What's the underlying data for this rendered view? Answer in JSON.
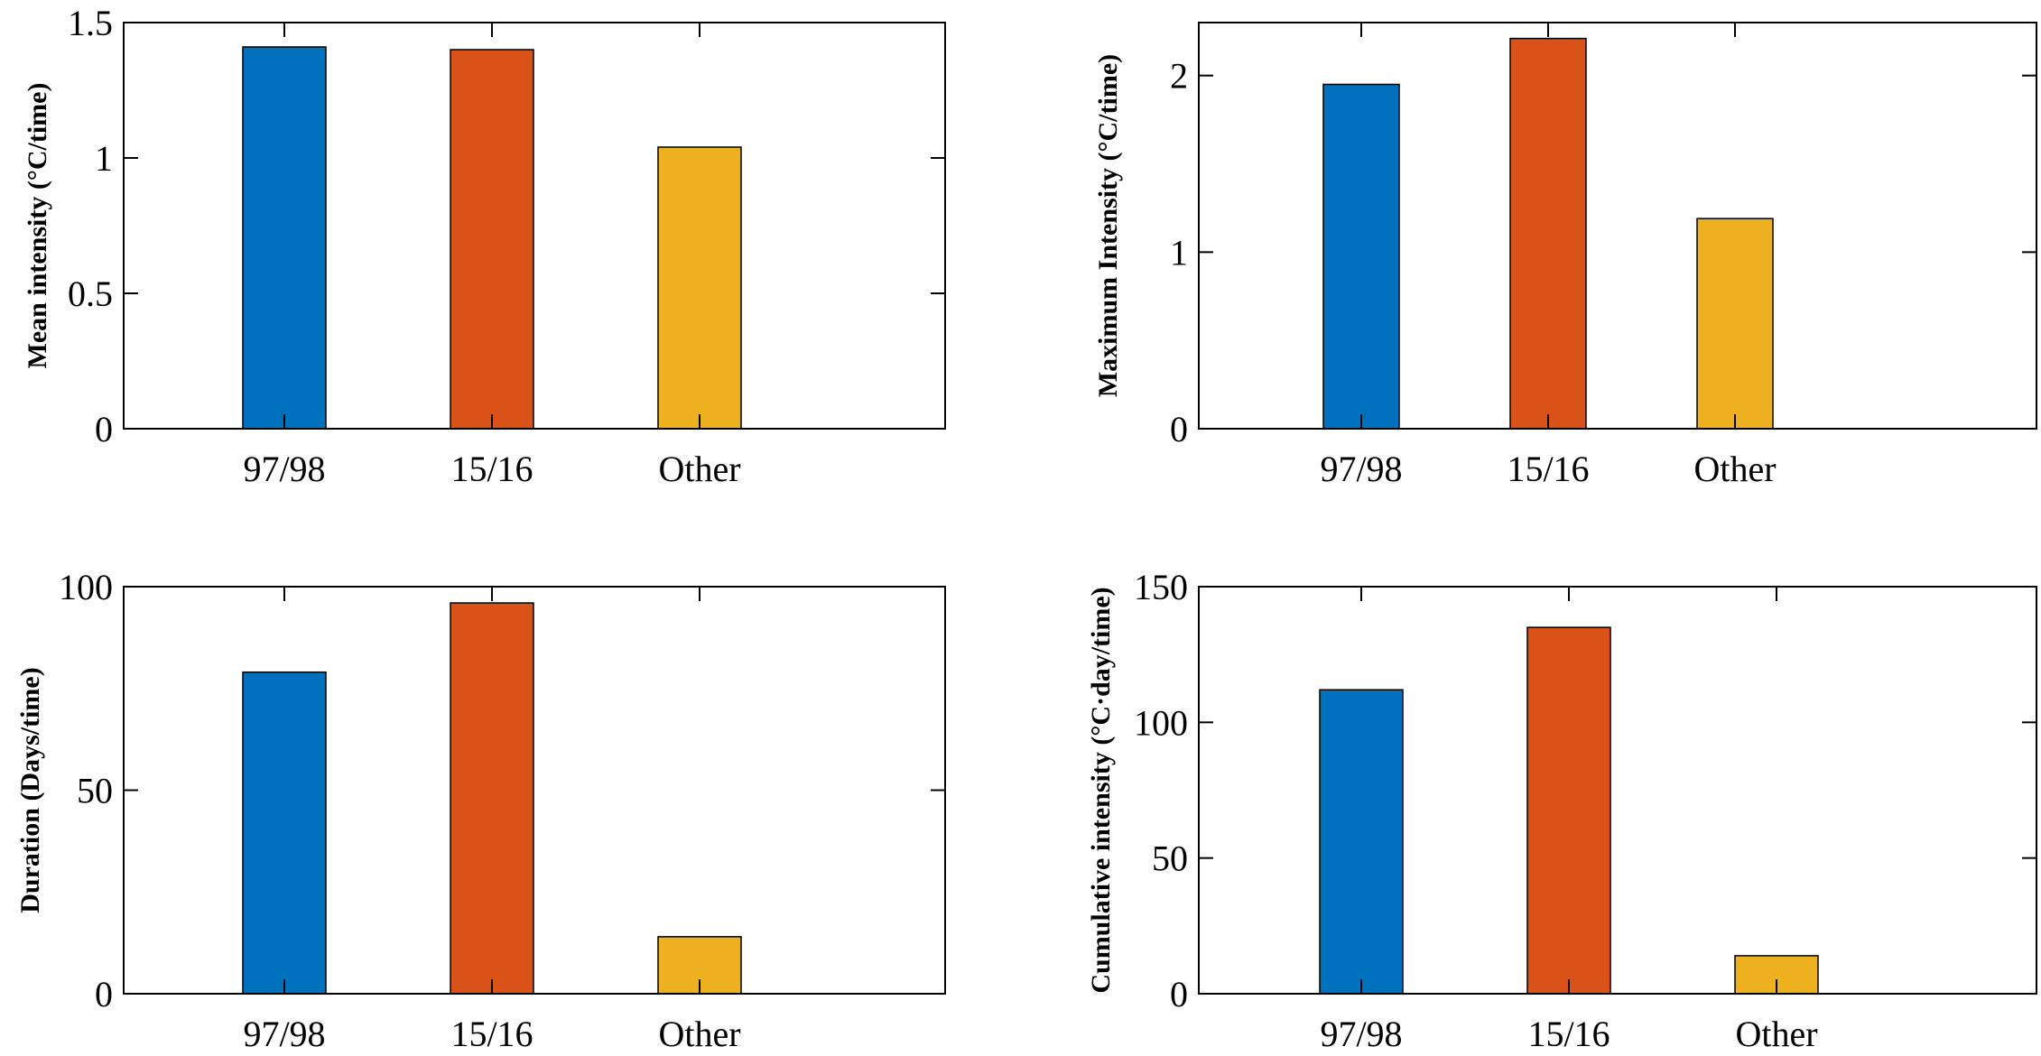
{
  "colors": {
    "97/98": "#0072BD",
    "15/16": "#D95319",
    "Other": "#EDB120"
  },
  "chart_data": [
    {
      "type": "bar",
      "position": "top-left",
      "categories": [
        "97/98",
        "15/16",
        "Other"
      ],
      "values": [
        1.41,
        1.4,
        1.04
      ],
      "ylabel": "Mean intensity  (°C/time)",
      "xlabel": "",
      "ylim": [
        0,
        1.5
      ],
      "yticks": [
        0,
        0.5,
        1,
        1.5
      ],
      "ytick_labels": [
        "0",
        "0.5",
        "1",
        "1.5"
      ],
      "grid": false
    },
    {
      "type": "bar",
      "position": "top-right",
      "categories": [
        "97/98",
        "15/16",
        "Other"
      ],
      "values": [
        1.95,
        2.21,
        1.19
      ],
      "ylabel": "Maximum Intensity  (°C/time)",
      "xlabel": "",
      "ylim": [
        0,
        2.3
      ],
      "yticks": [
        0,
        1,
        2
      ],
      "ytick_labels": [
        "0",
        "1",
        "2"
      ],
      "grid": false
    },
    {
      "type": "bar",
      "position": "bottom-left",
      "categories": [
        "97/98",
        "15/16",
        "Other"
      ],
      "values": [
        79,
        96,
        14
      ],
      "ylabel": "Duration  (Days/time)",
      "xlabel": "",
      "ylim": [
        0,
        100
      ],
      "yticks": [
        0,
        50,
        100
      ],
      "ytick_labels": [
        "0",
        "50",
        "100"
      ],
      "grid": false
    },
    {
      "type": "bar",
      "position": "bottom-right",
      "categories": [
        "97/98",
        "15/16",
        "Other"
      ],
      "values": [
        112,
        135,
        14
      ],
      "ylabel": "Cumulative intensity  (°C·day/time)",
      "xlabel": "",
      "ylim": [
        0,
        150
      ],
      "yticks": [
        0,
        50,
        100,
        150
      ],
      "ytick_labels": [
        "0",
        "50",
        "100",
        "150"
      ],
      "grid": false
    }
  ]
}
